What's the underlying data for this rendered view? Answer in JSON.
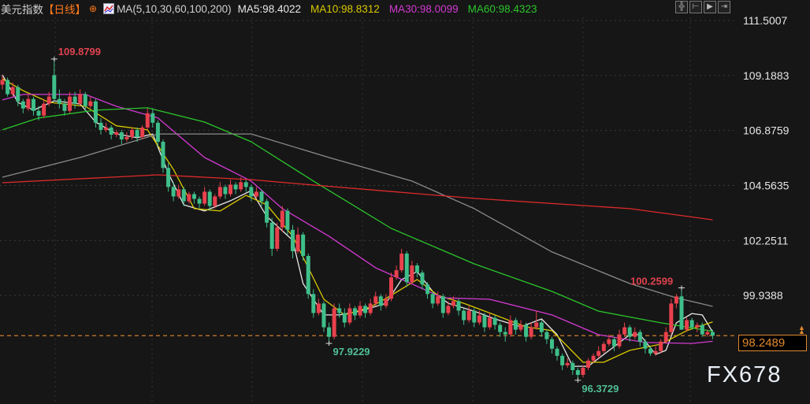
{
  "header": {
    "title": "美元指数",
    "period": "【日线】",
    "toggle_icon": "circle-plus-icon",
    "indicator_icon": "chart-icon",
    "ma_label": "MA(5,10,30,60,100,200)",
    "ma5": "MA5:98.4022",
    "ma10": "MA10:98.8312",
    "ma30": "MA30:98.0099",
    "ma60": "MA60:98.4323"
  },
  "toolbar": [
    {
      "icon": "crosshair-icon",
      "glyph": "╬"
    },
    {
      "icon": "zoom-range-icon",
      "glyph": "⊢"
    },
    {
      "icon": "play-range-icon",
      "glyph": "▶"
    },
    {
      "icon": "exit-right-icon",
      "glyph": "⇥"
    }
  ],
  "current_price": "98.2489",
  "watermark": "FX678",
  "colors": {
    "up": "#e8414d",
    "down": "#3fbf8a",
    "ma5": "#e8e8e8",
    "ma10": "#d9c800",
    "ma30": "#d23ad2",
    "ma60": "#2bc52b",
    "ma100": "#8a8a8a",
    "ma200": "#e02a2a",
    "price_line": "#e08a2e"
  },
  "chart_data": {
    "type": "candlestick",
    "title": "美元指数",
    "ylim": [
      95.6,
      111.5007
    ],
    "y_ticks": [
      "111.5007",
      "109.1883",
      "106.8759",
      "104.5635",
      "102.2511",
      "99.9388"
    ],
    "y_tick_values": [
      111.5007,
      109.1883,
      106.8759,
      104.5635,
      102.2511,
      99.9388
    ],
    "grid": true,
    "ohlc": [
      [
        108.8,
        109.2,
        108.6,
        109.0
      ],
      [
        109.0,
        109.1,
        108.3,
        108.4
      ],
      [
        108.4,
        108.9,
        108.3,
        108.7
      ],
      [
        108.7,
        108.8,
        107.9,
        108.1
      ],
      [
        108.1,
        108.2,
        107.6,
        107.8
      ],
      [
        107.8,
        108.4,
        107.7,
        108.2
      ],
      [
        108.2,
        108.3,
        107.5,
        107.7
      ],
      [
        107.7,
        107.9,
        107.3,
        107.5
      ],
      [
        107.5,
        108.2,
        107.4,
        108.0
      ],
      [
        108.0,
        108.5,
        107.9,
        108.3
      ],
      [
        109.2,
        109.8799,
        108.1,
        108.2
      ],
      [
        108.2,
        108.6,
        107.8,
        108.0
      ],
      [
        108.0,
        108.2,
        107.5,
        107.7
      ],
      [
        107.7,
        108.5,
        107.6,
        108.3
      ],
      [
        108.3,
        108.5,
        107.8,
        108.0
      ],
      [
        108.0,
        108.6,
        107.9,
        108.4
      ],
      [
        108.4,
        108.5,
        107.7,
        107.9
      ],
      [
        107.9,
        108.3,
        107.8,
        108.1
      ],
      [
        108.1,
        108.2,
        107.0,
        107.2
      ],
      [
        107.2,
        107.4,
        106.7,
        106.9
      ],
      [
        106.9,
        107.2,
        106.8,
        107.0
      ],
      [
        107.0,
        107.1,
        106.5,
        106.7
      ],
      [
        106.7,
        106.9,
        106.6,
        106.8
      ],
      [
        106.8,
        106.9,
        106.3,
        106.5
      ],
      [
        106.5,
        106.8,
        106.4,
        106.6
      ],
      [
        106.6,
        107.0,
        106.5,
        106.9
      ],
      [
        106.9,
        107.0,
        106.4,
        106.6
      ],
      [
        106.6,
        107.1,
        106.5,
        107.0
      ],
      [
        107.0,
        107.8,
        106.9,
        107.6
      ],
      [
        107.6,
        107.8,
        107.0,
        107.2
      ],
      [
        107.2,
        107.3,
        106.2,
        106.4
      ],
      [
        106.4,
        106.5,
        105.1,
        105.3
      ],
      [
        105.3,
        105.5,
        104.3,
        104.5
      ],
      [
        104.5,
        104.7,
        103.9,
        104.1
      ],
      [
        104.1,
        104.6,
        104.0,
        104.4
      ],
      [
        104.4,
        104.5,
        103.7,
        103.9
      ],
      [
        103.9,
        104.3,
        103.8,
        104.2
      ],
      [
        104.2,
        104.3,
        103.8,
        104.0
      ],
      [
        104.0,
        104.1,
        103.6,
        103.8
      ],
      [
        103.8,
        104.5,
        103.7,
        104.3
      ],
      [
        104.3,
        104.4,
        103.5,
        103.7
      ],
      [
        103.7,
        104.2,
        103.6,
        104.1
      ],
      [
        104.1,
        104.7,
        104.0,
        104.5
      ],
      [
        104.5,
        104.6,
        104.0,
        104.2
      ],
      [
        104.2,
        104.8,
        104.1,
        104.6
      ],
      [
        104.6,
        104.7,
        104.2,
        104.4
      ],
      [
        104.4,
        104.9,
        104.3,
        104.7
      ],
      [
        104.7,
        104.8,
        104.3,
        104.5
      ],
      [
        104.5,
        104.6,
        103.9,
        104.1
      ],
      [
        104.1,
        104.5,
        104.0,
        104.3
      ],
      [
        104.3,
        104.4,
        103.7,
        103.9
      ],
      [
        103.9,
        104.0,
        102.8,
        103.0
      ],
      [
        103.0,
        103.2,
        101.6,
        101.9
      ],
      [
        101.9,
        103.0,
        101.8,
        102.8
      ],
      [
        102.8,
        103.7,
        102.6,
        103.5
      ],
      [
        103.5,
        103.6,
        102.5,
        102.7
      ],
      [
        102.7,
        102.9,
        101.5,
        101.8
      ],
      [
        101.8,
        102.8,
        101.7,
        102.5
      ],
      [
        102.5,
        102.6,
        101.4,
        101.6
      ],
      [
        101.6,
        101.7,
        99.8,
        100.0
      ],
      [
        100.0,
        100.2,
        99.0,
        99.2
      ],
      [
        99.2,
        99.8,
        99.1,
        99.6
      ],
      [
        99.6,
        99.7,
        98.4,
        98.6
      ],
      [
        98.6,
        98.8,
        97.9229,
        98.2
      ],
      [
        98.2,
        99.6,
        98.1,
        99.4
      ],
      [
        99.4,
        99.6,
        99.0,
        99.2
      ],
      [
        99.2,
        99.4,
        98.6,
        98.8
      ],
      [
        98.8,
        99.6,
        98.7,
        99.4
      ],
      [
        99.4,
        99.5,
        98.9,
        99.1
      ],
      [
        99.1,
        99.7,
        99.0,
        99.5
      ],
      [
        99.5,
        99.6,
        99.0,
        99.2
      ],
      [
        99.2,
        99.8,
        99.1,
        99.6
      ],
      [
        99.6,
        100.1,
        99.5,
        99.9
      ],
      [
        99.9,
        100.0,
        99.3,
        99.5
      ],
      [
        99.5,
        100.0,
        99.4,
        99.8
      ],
      [
        99.8,
        100.9,
        99.7,
        100.7
      ],
      [
        100.7,
        101.2,
        100.6,
        101.0
      ],
      [
        101.0,
        101.9,
        100.9,
        101.7
      ],
      [
        101.7,
        101.8,
        100.3,
        100.5
      ],
      [
        100.5,
        101.4,
        100.4,
        101.2
      ],
      [
        101.2,
        101.3,
        100.7,
        100.9
      ],
      [
        100.9,
        101.0,
        100.2,
        100.4
      ],
      [
        100.4,
        100.5,
        99.8,
        100.0
      ],
      [
        100.0,
        100.1,
        99.4,
        99.6
      ],
      [
        99.6,
        100.1,
        99.5,
        99.9
      ],
      [
        99.9,
        100.0,
        99.0,
        99.2
      ],
      [
        99.2,
        99.7,
        99.1,
        99.5
      ],
      [
        99.5,
        99.9,
        99.4,
        99.7
      ],
      [
        99.7,
        99.8,
        99.1,
        99.3
      ],
      [
        99.3,
        99.4,
        98.7,
        98.9
      ],
      [
        98.9,
        99.5,
        98.8,
        99.3
      ],
      [
        99.3,
        99.4,
        98.6,
        98.8
      ],
      [
        98.8,
        99.3,
        98.7,
        99.1
      ],
      [
        99.1,
        99.2,
        98.4,
        98.6
      ],
      [
        98.6,
        99.2,
        98.5,
        99.0
      ],
      [
        99.0,
        99.1,
        98.5,
        98.7
      ],
      [
        98.7,
        98.8,
        98.2,
        98.4
      ],
      [
        98.4,
        98.6,
        98.0,
        98.3
      ],
      [
        98.3,
        99.1,
        98.2,
        98.9
      ],
      [
        98.9,
        99.0,
        98.3,
        98.5
      ],
      [
        98.5,
        98.9,
        98.4,
        98.7
      ],
      [
        98.7,
        98.8,
        98.0,
        98.2
      ],
      [
        98.2,
        98.8,
        98.1,
        98.6
      ],
      [
        98.6,
        99.3,
        98.5,
        98.8
      ],
      [
        98.8,
        98.9,
        98.2,
        98.4
      ],
      [
        98.4,
        98.5,
        97.9,
        98.1
      ],
      [
        98.1,
        98.2,
        97.5,
        97.7
      ],
      [
        97.7,
        97.8,
        97.2,
        97.4
      ],
      [
        97.4,
        97.5,
        96.8,
        97.0
      ],
      [
        97.0,
        97.3,
        96.9,
        97.1
      ],
      [
        97.1,
        97.2,
        96.6,
        96.8
      ],
      [
        96.8,
        96.9,
        96.3729,
        96.6
      ],
      [
        96.6,
        97.0,
        96.5,
        96.9
      ],
      [
        96.9,
        97.3,
        96.8,
        97.2
      ],
      [
        97.2,
        97.5,
        97.1,
        97.4
      ],
      [
        97.4,
        97.8,
        97.3,
        97.6
      ],
      [
        97.6,
        98.0,
        97.5,
        97.9
      ],
      [
        97.9,
        98.3,
        97.8,
        98.1
      ],
      [
        98.1,
        98.2,
        97.6,
        97.8
      ],
      [
        97.8,
        98.5,
        97.7,
        98.3
      ],
      [
        98.3,
        98.8,
        98.2,
        98.6
      ],
      [
        98.6,
        98.7,
        98.0,
        98.2
      ],
      [
        98.2,
        98.6,
        98.1,
        98.4
      ],
      [
        98.4,
        98.5,
        97.8,
        98.0
      ],
      [
        98.0,
        98.1,
        97.5,
        97.7
      ],
      [
        97.7,
        97.8,
        97.4,
        97.5
      ],
      [
        97.5,
        97.8,
        97.4,
        97.6
      ],
      [
        97.6,
        98.1,
        97.5,
        98.0
      ],
      [
        98.0,
        98.6,
        97.9,
        98.4
      ],
      [
        98.4,
        99.8,
        98.3,
        99.6
      ],
      [
        99.6,
        100.0,
        99.4,
        99.9
      ],
      [
        99.9,
        100.2599,
        98.5,
        98.5
      ],
      [
        98.5,
        99.0,
        98.4,
        98.9
      ],
      [
        98.9,
        99.0,
        98.5,
        98.6
      ],
      [
        98.6,
        98.8,
        98.4,
        98.7
      ],
      [
        98.7,
        98.8,
        98.2,
        98.3
      ],
      [
        98.3,
        98.5,
        98.2,
        98.4
      ],
      [
        98.4,
        98.5,
        98.1,
        98.2489
      ]
    ],
    "ma_lines": [
      {
        "name": "MA5",
        "color": "#e8e8e8",
        "points": [
          [
            0,
            109.22
          ],
          [
            3,
            108.06
          ],
          [
            6,
            107.73
          ],
          [
            10,
            108.12
          ],
          [
            15,
            107.99
          ],
          [
            18,
            107.23
          ],
          [
            22,
            106.73
          ],
          [
            26,
            106.57
          ],
          [
            29,
            106.73
          ],
          [
            32,
            105.08
          ],
          [
            35,
            103.75
          ],
          [
            39,
            103.49
          ],
          [
            44,
            103.92
          ],
          [
            48,
            104.35
          ],
          [
            51,
            103.26
          ],
          [
            56,
            102.26
          ],
          [
            58,
            100.44
          ],
          [
            62,
            99.12
          ],
          [
            65,
            99.12
          ],
          [
            69,
            99.28
          ],
          [
            74,
            99.61
          ],
          [
            77,
            100.61
          ],
          [
            80,
            100.94
          ],
          [
            83,
            100.11
          ],
          [
            86,
            99.61
          ],
          [
            91,
            99.28
          ],
          [
            95,
            98.95
          ],
          [
            100,
            98.62
          ],
          [
            104,
            98.95
          ],
          [
            107,
            98.29
          ],
          [
            110,
            96.96
          ],
          [
            113,
            96.96
          ],
          [
            118,
            97.79
          ],
          [
            121,
            98.29
          ],
          [
            123,
            98.29
          ],
          [
            126,
            97.46
          ],
          [
            128,
            97.63
          ],
          [
            130,
            98.79
          ],
          [
            133,
            99.18
          ],
          [
            135,
            99.12
          ],
          [
            137,
            98.4
          ]
        ]
      },
      {
        "name": "MA10",
        "color": "#d9c800",
        "points": [
          [
            0,
            109.05
          ],
          [
            4,
            108.55
          ],
          [
            9,
            108.06
          ],
          [
            16,
            107.89
          ],
          [
            22,
            107.07
          ],
          [
            28,
            106.9
          ],
          [
            33,
            105.24
          ],
          [
            37,
            103.59
          ],
          [
            42,
            103.49
          ],
          [
            47,
            104.15
          ],
          [
            51,
            103.75
          ],
          [
            56,
            102.43
          ],
          [
            62,
            99.78
          ],
          [
            66,
            99.12
          ],
          [
            71,
            99.45
          ],
          [
            75,
            99.94
          ],
          [
            80,
            100.61
          ],
          [
            84,
            99.94
          ],
          [
            89,
            99.61
          ],
          [
            95,
            99.12
          ],
          [
            101,
            98.62
          ],
          [
            106,
            98.46
          ],
          [
            112,
            97.13
          ],
          [
            116,
            97.13
          ],
          [
            121,
            97.63
          ],
          [
            127,
            97.89
          ],
          [
            132,
            98.46
          ],
          [
            137,
            98.83
          ]
        ]
      },
      {
        "name": "MA30",
        "color": "#d23ad2",
        "points": [
          [
            0,
            108.16
          ],
          [
            4,
            108.39
          ],
          [
            16,
            108.39
          ],
          [
            22,
            107.89
          ],
          [
            30,
            107.4
          ],
          [
            39,
            105.74
          ],
          [
            48,
            104.75
          ],
          [
            54,
            103.59
          ],
          [
            63,
            102.43
          ],
          [
            72,
            101.1
          ],
          [
            85,
            99.84
          ],
          [
            94,
            99.78
          ],
          [
            106,
            99.12
          ],
          [
            115,
            98.29
          ],
          [
            124,
            97.96
          ],
          [
            133,
            97.92
          ],
          [
            137,
            98.01
          ]
        ]
      },
      {
        "name": "MA60",
        "color": "#2bc52b",
        "points": [
          [
            0,
            106.9
          ],
          [
            7,
            107.4
          ],
          [
            18,
            107.73
          ],
          [
            28,
            107.83
          ],
          [
            39,
            107.23
          ],
          [
            48,
            106.4
          ],
          [
            60,
            104.75
          ],
          [
            75,
            102.76
          ],
          [
            91,
            101.27
          ],
          [
            106,
            100.11
          ],
          [
            115,
            99.28
          ],
          [
            127,
            98.79
          ],
          [
            137,
            98.43
          ]
        ]
      },
      {
        "name": "MA100",
        "color": "#8a8a8a",
        "points": [
          [
            0,
            104.91
          ],
          [
            15,
            105.74
          ],
          [
            30,
            106.73
          ],
          [
            48,
            106.73
          ],
          [
            63,
            105.74
          ],
          [
            79,
            104.75
          ],
          [
            91,
            103.59
          ],
          [
            106,
            101.77
          ],
          [
            121,
            100.44
          ],
          [
            130,
            99.84
          ],
          [
            137,
            99.48
          ]
        ]
      },
      {
        "name": "MA200",
        "color": "#e02a2a",
        "points": [
          [
            0,
            104.68
          ],
          [
            30,
            105.01
          ],
          [
            48,
            104.81
          ],
          [
            60,
            104.58
          ],
          [
            91,
            104.02
          ],
          [
            121,
            103.59
          ],
          [
            137,
            103.12
          ]
        ]
      }
    ],
    "annotations": [
      {
        "text": "109.8799",
        "index": 10,
        "value": 109.8799,
        "kind": "high"
      },
      {
        "text": "97.9229",
        "index": 63,
        "value": 97.9229,
        "kind": "low"
      },
      {
        "text": "96.3729",
        "index": 111,
        "value": 96.3729,
        "kind": "low"
      },
      {
        "text": "100.2599",
        "index": 131,
        "value": 100.2599,
        "kind": "high"
      }
    ],
    "current_price": 98.2489
  }
}
